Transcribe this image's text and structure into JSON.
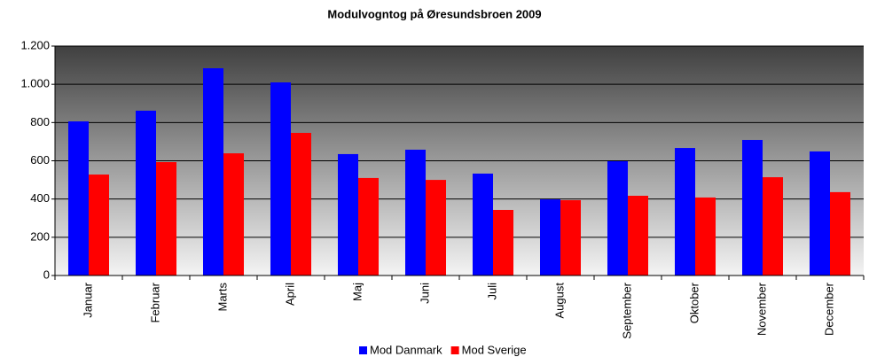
{
  "chart_data": {
    "type": "bar",
    "title": "Modulvogntog på Øresundsbroen 2009",
    "categories": [
      "Januar",
      "Februar",
      "Marts",
      "April",
      "Maj",
      "Juni",
      "Juli",
      "August",
      "September",
      "Oktober",
      "November",
      "December"
    ],
    "series": [
      {
        "name": "Mod Danmark",
        "color": "#0000ff",
        "values": [
          806,
          862,
          1084,
          1010,
          635,
          658,
          533,
          398,
          598,
          667,
          709,
          649
        ]
      },
      {
        "name": "Mod Sverige",
        "color": "#ff0000",
        "values": [
          528,
          593,
          639,
          746,
          510,
          500,
          343,
          394,
          417,
          408,
          514,
          436
        ]
      }
    ],
    "ylim": [
      0,
      1200
    ],
    "yticks": [
      0,
      200,
      400,
      600,
      800,
      {
        "value": 1000,
        "label": "1.000"
      },
      {
        "value": 1200,
        "label": "1.200"
      }
    ],
    "grid": true,
    "legend": "bottom"
  }
}
